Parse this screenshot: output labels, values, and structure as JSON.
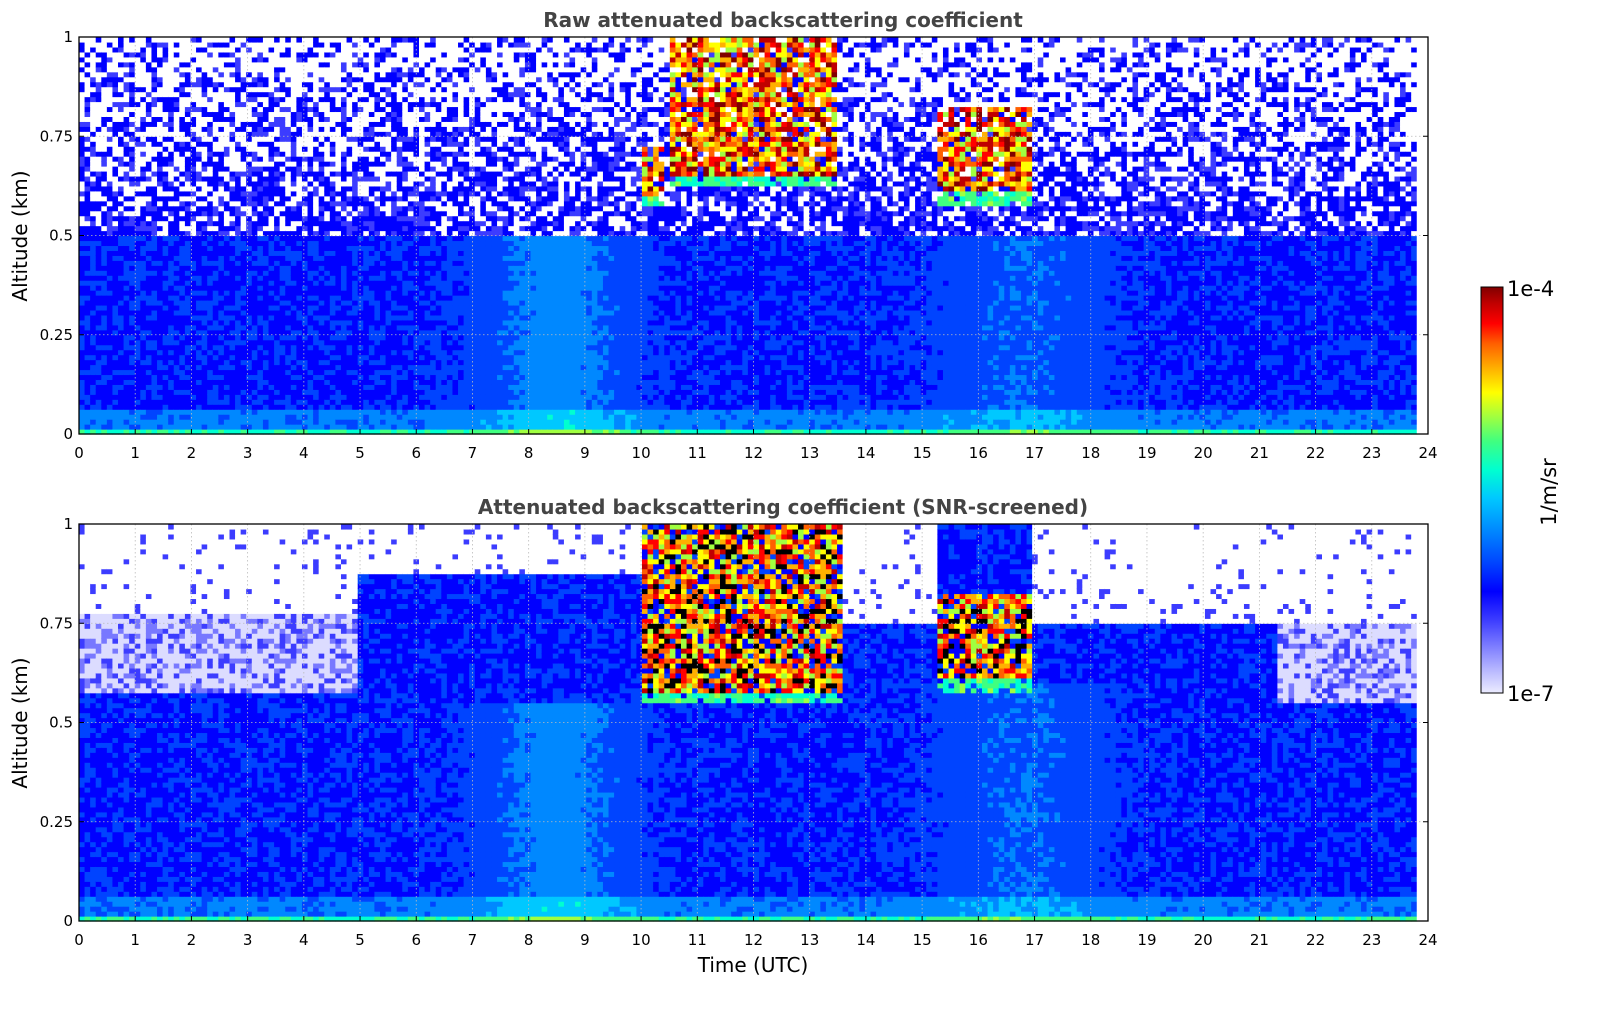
{
  "chart_data": [
    {
      "type": "heatmap",
      "title": "Raw attenuated backscattering coefficient",
      "xlabel": "",
      "ylabel": "Altitude (km)",
      "xlim": [
        0,
        24
      ],
      "ylim": [
        0,
        1
      ],
      "xticks": [
        "0",
        "1",
        "2",
        "3",
        "4",
        "5",
        "6",
        "7",
        "8",
        "9",
        "10",
        "11",
        "12",
        "13",
        "14",
        "15",
        "16",
        "17",
        "18",
        "19",
        "20",
        "21",
        "22",
        "23",
        "24"
      ],
      "yticks": [
        "0",
        "0.25",
        "0.5",
        "0.75",
        "1"
      ],
      "grid": true,
      "data_end_hour": 23.8,
      "features": [
        {
          "kind": "noise_free_layer_top_km",
          "value": 0.5
        },
        {
          "kind": "cloud",
          "start_h": 10.0,
          "end_h": 10.4,
          "base_km": 0.57,
          "top_km": 0.72
        },
        {
          "kind": "cloud",
          "start_h": 10.5,
          "end_h": 13.5,
          "base_km": 0.62,
          "top_km": 1.0
        },
        {
          "kind": "cloud",
          "start_h": 15.3,
          "end_h": 17.0,
          "base_km": 0.58,
          "top_km": 0.82
        }
      ]
    },
    {
      "type": "heatmap",
      "title": "Attenuated backscattering coefficient (SNR-screened)",
      "xlabel": "Time (UTC)",
      "ylabel": "Altitude (km)",
      "xlim": [
        0,
        24
      ],
      "ylim": [
        0,
        1
      ],
      "xticks": [
        "0",
        "1",
        "2",
        "3",
        "4",
        "5",
        "6",
        "7",
        "8",
        "9",
        "10",
        "11",
        "12",
        "13",
        "14",
        "15",
        "16",
        "17",
        "18",
        "19",
        "20",
        "21",
        "22",
        "23",
        "24"
      ],
      "yticks": [
        "0",
        "0.25",
        "0.5",
        "0.75",
        "1"
      ],
      "grid": true,
      "data_end_hour": 23.8,
      "features": [
        {
          "kind": "screened_top_km",
          "start_h": 0,
          "end_h": 5,
          "value": 0.78
        },
        {
          "kind": "screened_top_km",
          "start_h": 5,
          "end_h": 10,
          "value": 0.88
        },
        {
          "kind": "screened_top_km",
          "start_h": 14,
          "end_h": 17.5,
          "value": 0.75
        },
        {
          "kind": "screened_top_km",
          "start_h": 17.5,
          "end_h": 24,
          "value": 0.75
        },
        {
          "kind": "cloud",
          "start_h": 10.0,
          "end_h": 13.6,
          "base_km": 0.55,
          "top_km": 1.0
        },
        {
          "kind": "cloud",
          "start_h": 15.3,
          "end_h": 17.0,
          "base_km": 0.58,
          "top_km": 0.82
        }
      ]
    }
  ],
  "colorbar": {
    "max_label": "1e-4",
    "min_label": "1e-7",
    "unit_label": "1/m/sr",
    "colors": [
      "#ececff",
      "#b4b4ff",
      "#7878ff",
      "#3c3cff",
      "#0000ff",
      "#0044ff",
      "#0088ff",
      "#00c8ff",
      "#00ffd0",
      "#40ff80",
      "#a0ff40",
      "#ffff00",
      "#ffb000",
      "#ff6000",
      "#ff0000",
      "#c00000",
      "#800000"
    ]
  }
}
